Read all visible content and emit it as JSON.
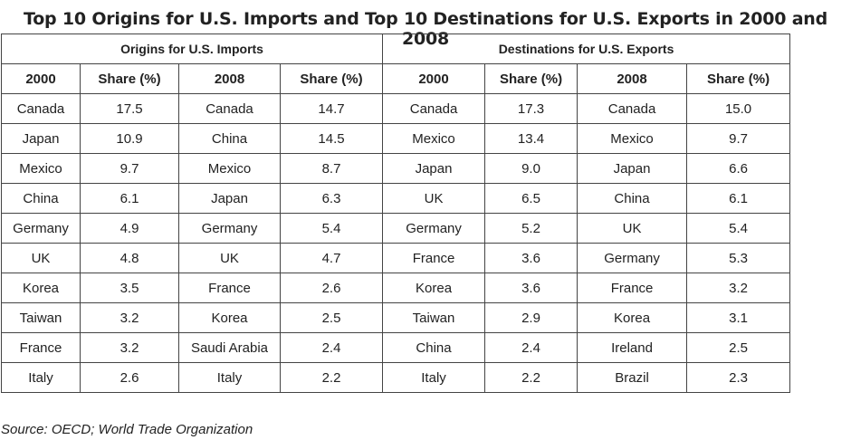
{
  "title": "Top 10 Origins for U.S. Imports and Top 10 Destinations for U.S. Exports in 2000 and 2008",
  "groups": {
    "imports": "Origins for U.S. Imports",
    "exports": "Destinations for U.S. Exports"
  },
  "columns": [
    "2000",
    "Share (%)",
    "2008",
    "Share (%)",
    "2000",
    "Share (%)",
    "2008",
    "Share (%)"
  ],
  "rows": [
    [
      "Canada",
      "17.5",
      "Canada",
      "14.7",
      "Canada",
      "17.3",
      "Canada",
      "15.0"
    ],
    [
      "Japan",
      "10.9",
      "China",
      "14.5",
      "Mexico",
      "13.4",
      "Mexico",
      "9.7"
    ],
    [
      "Mexico",
      "9.7",
      "Mexico",
      "8.7",
      "Japan",
      "9.0",
      "Japan",
      "6.6"
    ],
    [
      "China",
      "6.1",
      "Japan",
      "6.3",
      "UK",
      "6.5",
      "China",
      "6.1"
    ],
    [
      "Germany",
      "4.9",
      "Germany",
      "5.4",
      "Germany",
      "5.2",
      "UK",
      "5.4"
    ],
    [
      "UK",
      "4.8",
      "UK",
      "4.7",
      "France",
      "3.6",
      "Germany",
      "5.3"
    ],
    [
      "Korea",
      "3.5",
      "France",
      "2.6",
      "Korea",
      "3.6",
      "France",
      "3.2"
    ],
    [
      "Taiwan",
      "3.2",
      "Korea",
      "2.5",
      "Taiwan",
      "2.9",
      "Korea",
      "3.1"
    ],
    [
      "France",
      "3.2",
      "Saudi Arabia",
      "2.4",
      "China",
      "2.4",
      "Ireland",
      "2.5"
    ],
    [
      "Italy",
      "2.6",
      "Italy",
      "2.2",
      "Italy",
      "2.2",
      "Brazil",
      "2.3"
    ]
  ],
  "source": "Source: OECD; World Trade Organization"
}
